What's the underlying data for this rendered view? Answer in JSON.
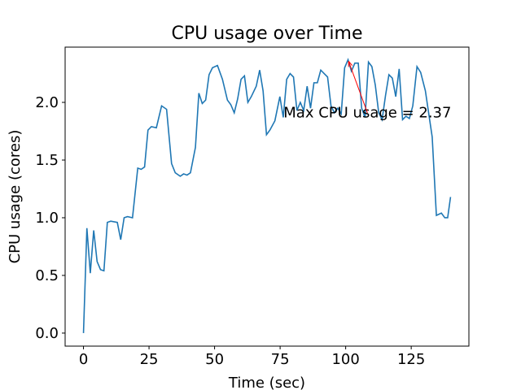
{
  "chart_data": {
    "type": "line",
    "title": "CPU usage over Time",
    "xlabel": "Time (sec)",
    "ylabel": "CPU usage (cores)",
    "x": [
      0,
      1.3,
      2.6,
      3.9,
      5.2,
      6.5,
      7.8,
      9.1,
      10.4,
      12.9,
      14.2,
      15.5,
      16.8,
      18.7,
      20.7,
      22.0,
      23.3,
      24.6,
      25.9,
      27.8,
      29.8,
      31.7,
      33.6,
      35.0,
      36.9,
      38.2,
      39.5,
      40.8,
      42.7,
      44.0,
      45.3,
      46.6,
      47.9,
      49.2,
      51.1,
      53.0,
      54.9,
      56.2,
      57.5,
      58.8,
      60.1,
      61.4,
      62.7,
      64.0,
      65.9,
      67.2,
      68.5,
      69.8,
      71.1,
      73.0,
      74.9,
      76.2,
      77.5,
      78.8,
      80.1,
      81.4,
      82.7,
      84.0,
      85.3,
      86.6,
      87.9,
      89.2,
      90.5,
      91.8,
      93.1,
      94.4,
      95.7,
      97.0,
      98.3,
      99.6,
      100.9,
      102.2,
      103.5,
      104.8,
      106.1,
      107.4,
      108.7,
      110.0,
      111.3,
      112.6,
      113.9,
      115.2,
      116.5,
      117.8,
      119.1,
      120.4,
      121.7,
      123.0,
      124.3,
      125.6,
      127.2,
      128.6,
      130.4,
      133.0,
      134.6,
      136.5,
      137.8,
      138.9,
      140.0
    ],
    "series": [
      {
        "name": "CPU usage",
        "color": "#1f77b4",
        "values": [
          0,
          0.91,
          0.52,
          0.89,
          0.62,
          0.55,
          0.54,
          0.96,
          0.97,
          0.96,
          0.81,
          1.0,
          1.01,
          1.0,
          1.43,
          1.42,
          1.44,
          1.76,
          1.79,
          1.78,
          1.97,
          1.94,
          1.47,
          1.39,
          1.36,
          1.38,
          1.37,
          1.39,
          1.61,
          2.08,
          1.99,
          2.02,
          2.24,
          2.3,
          2.32,
          2.2,
          2.02,
          1.98,
          1.91,
          2.03,
          2.2,
          2.23,
          2.0,
          2.05,
          2.14,
          2.28,
          2.1,
          1.72,
          1.76,
          1.84,
          2.05,
          1.87,
          2.2,
          2.25,
          2.22,
          1.93,
          2.0,
          1.93,
          2.14,
          1.95,
          2.17,
          2.17,
          2.28,
          2.25,
          2.22,
          1.97,
          1.91,
          1.95,
          1.9,
          2.3,
          2.37,
          2.27,
          2.34,
          2.34,
          1.95,
          1.87,
          2.35,
          2.31,
          2.15,
          1.91,
          1.85,
          2.06,
          2.24,
          2.21,
          2.05,
          2.29,
          1.85,
          1.88,
          1.86,
          1.97,
          2.31,
          2.26,
          2.1,
          1.7,
          1.02,
          1.04,
          1.0,
          1.0,
          1.18
        ]
      }
    ],
    "xlim": [
      -7,
      147
    ],
    "ylim": [
      -0.113,
      2.479
    ],
    "xticks": [
      0,
      25,
      50,
      75,
      100,
      125
    ],
    "yticks": [
      {
        "value": 0,
        "label": "0.0"
      },
      {
        "value": 0.5,
        "label": "0.5"
      },
      {
        "value": 1,
        "label": "1.0"
      },
      {
        "value": 1.5,
        "label": "1.5"
      },
      {
        "value": 2,
        "label": "2.0"
      }
    ],
    "grid": false,
    "annotation": {
      "text": "Max CPU usage = 2.37",
      "color": "#ff0000",
      "xy": [
        100.9,
        2.37
      ],
      "xytext": [
        76.3,
        1.87
      ]
    }
  }
}
